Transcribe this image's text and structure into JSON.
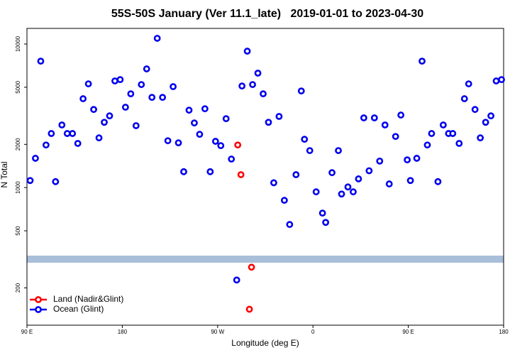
{
  "chart_data": {
    "type": "scatter",
    "title": "55S-50S January (Ver 11.1_late)   2019-01-01 to 2023-04-30",
    "x_label": "Longitude (deg E)",
    "y_label": "N Total",
    "log_y": true,
    "legend_position": "lower left",
    "xlim": [
      90,
      540
    ],
    "ylim": [
      110,
      12850
    ],
    "xticks": [
      {
        "value": 90,
        "label": "90 E"
      },
      180,
      {
        "value": 270,
        "label": "90 W"
      },
      {
        "value": 360,
        "label": "0"
      },
      {
        "value": 450,
        "label": "90 E"
      },
      {
        "value": 540,
        "label": "180"
      }
    ],
    "yticks": [
      200,
      500,
      1000,
      2000,
      5000,
      10000
    ],
    "series": [
      {
        "name": "Land (Nadir&Glint)",
        "color": "#ff0000",
        "x": [
          289,
          292,
          302,
          300
        ],
        "values": [
          1980,
          1230,
          279,
          142
        ]
      },
      {
        "name": "Ocean (Glint)",
        "color": "#0000ee",
        "x": [
          93,
          98,
          103,
          108,
          113,
          117,
          123,
          128,
          133,
          138,
          143,
          148,
          153,
          158,
          163,
          168,
          173,
          178,
          183,
          188,
          193,
          198,
          203,
          208,
          213,
          218,
          223,
          228,
          233,
          238,
          243,
          248,
          253,
          258,
          263,
          268,
          273,
          278,
          283,
          288,
          293,
          298,
          303,
          308,
          313,
          318,
          323,
          328,
          333,
          338,
          344,
          349,
          352,
          357,
          363,
          369,
          372,
          378,
          384,
          387,
          393,
          398,
          403,
          408,
          413,
          418,
          423,
          428,
          432,
          438,
          443,
          449,
          452,
          458,
          463,
          468,
          472,
          478,
          483,
          488,
          492,
          498,
          503,
          507,
          513,
          518,
          523,
          528,
          533,
          538
        ],
        "values": [
          1120,
          1600,
          7600,
          1980,
          2380,
          1100,
          2730,
          2380,
          2380,
          2030,
          4160,
          5280,
          3500,
          2220,
          2850,
          3160,
          5530,
          5650,
          3630,
          4500,
          2700,
          5220,
          6710,
          4250,
          10960,
          4250,
          2120,
          5050,
          2050,
          1290,
          3460,
          2820,
          2350,
          3540,
          1290,
          2100,
          1960,
          3020,
          1580,
          227,
          5100,
          8920,
          5220,
          6270,
          4500,
          2850,
          1080,
          3130,
          815,
          553,
          1230,
          4710,
          2170,
          1810,
          934,
          664,
          572,
          1270,
          1810,
          902,
          1010,
          934,
          1150,
          3060,
          1310,
          3060,
          1530,
          2730,
          1060,
          2270,
          3200,
          1560,
          1120,
          1600,
          7600,
          1980,
          2380,
          1100,
          2730,
          2380,
          2380,
          2030,
          4160,
          5280,
          3500,
          2220,
          2850,
          3160,
          5530,
          5650
        ]
      }
    ]
  }
}
